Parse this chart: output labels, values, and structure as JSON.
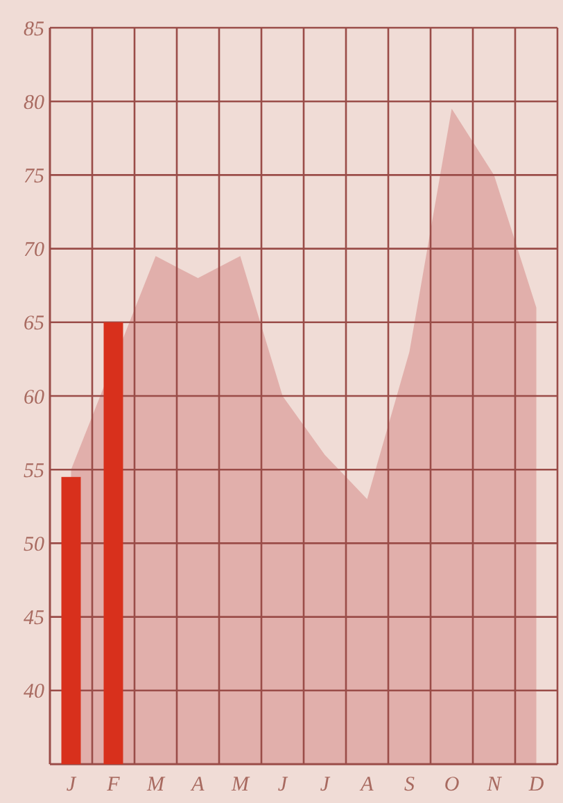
{
  "chart_data": {
    "type": "bar",
    "categories": [
      "J",
      "F",
      "M",
      "A",
      "M",
      "J",
      "J",
      "A",
      "S",
      "O",
      "N",
      "D"
    ],
    "series": [
      {
        "type": "area",
        "color": "#dca09c",
        "values": [
          55,
          null,
          69.5,
          68,
          69.5,
          60,
          56,
          53,
          63,
          79.5,
          75,
          66
        ]
      },
      {
        "color": "#d8301c",
        "values": [
          54.5,
          65,
          null,
          null,
          null,
          null,
          null,
          null,
          null,
          null,
          null,
          null
        ]
      }
    ],
    "ylim": [
      35,
      85
    ],
    "yticks": [
      40,
      45,
      50,
      55,
      60,
      65,
      70,
      75,
      80,
      85
    ],
    "grid": true
  }
}
